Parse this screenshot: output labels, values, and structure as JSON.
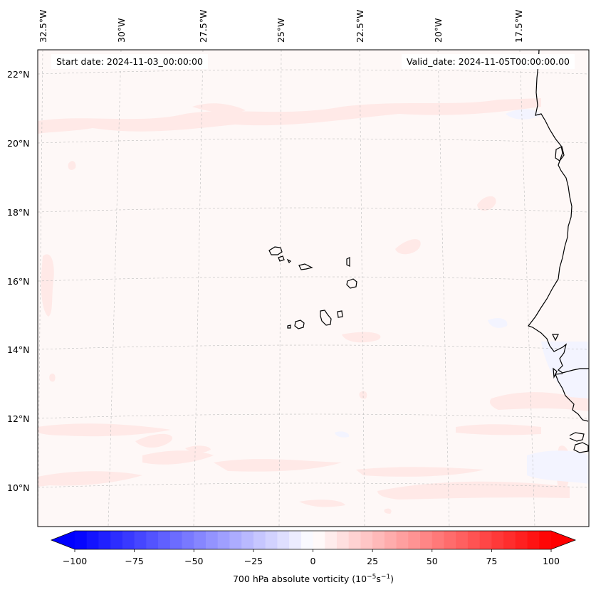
{
  "map": {
    "start_date_text": "Start date: 2024-11-03_00:00:00",
    "valid_date_text": "Valid_date: 2024-11-05T00:00:00.00",
    "longitude_labels": [
      "32.5°W",
      "30°W",
      "27.5°W",
      "25°W",
      "22.5°W",
      "20°W",
      "17.5°W"
    ],
    "latitude_labels": [
      "22°N",
      "20°N",
      "18°N",
      "16°N",
      "14°N",
      "12°N",
      "10°N"
    ],
    "land_features": [
      "Cabo Verde islands",
      "West African coastline"
    ]
  },
  "colorbar": {
    "label_prefix": "700 hPa absolute vorticity (10",
    "label_exp1": "−5",
    "label_mid": "s",
    "label_exp2": "−1",
    "label_suffix": ")",
    "tick_labels": [
      "−100",
      "−75",
      "−50",
      "−25",
      "0",
      "25",
      "50",
      "75",
      "100"
    ],
    "min": -100,
    "max": 100,
    "colors": {
      "negative": "#0000ff",
      "neutral": "#ffffff",
      "positive": "#ff0000"
    }
  }
}
